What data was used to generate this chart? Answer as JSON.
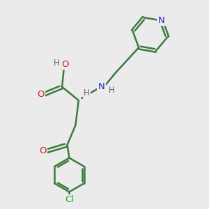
{
  "bg_color": "#ebebeb",
  "bond_color": "#3d7a3d",
  "bond_width": 1.8,
  "N_color": "#2222cc",
  "O_color": "#cc2222",
  "Cl_color": "#22aa22",
  "H_color": "#666666",
  "fig_size": [
    3.0,
    3.0
  ],
  "dpi": 100,
  "xlim": [
    0,
    10
  ],
  "ylim": [
    0,
    10
  ]
}
